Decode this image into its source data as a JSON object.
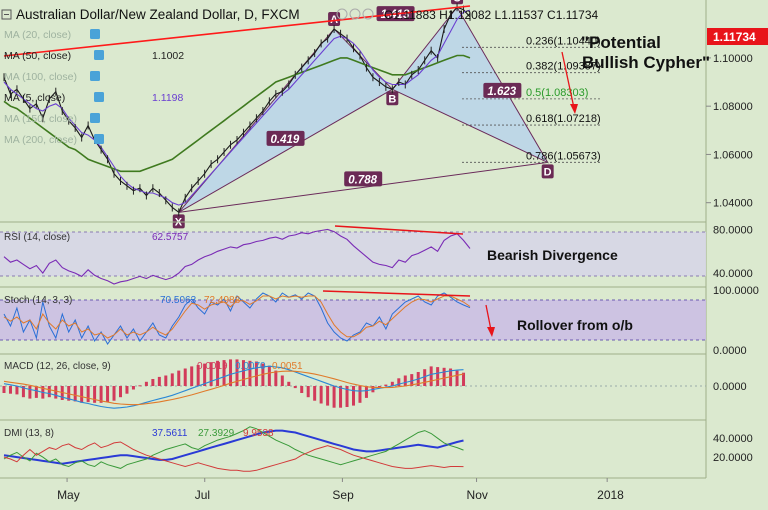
{
  "header": {
    "symbol": "Australian Dollar/New Zealand Dollar, D, FXCM",
    "ohlc": "O1.11883  H1.12082  L1.11537  C1.11734",
    "price_badge": "1.11734"
  },
  "indicators_overlay": [
    {
      "label": "MA (20, close)",
      "value": ""
    },
    {
      "label": "MA (50, close)",
      "value": "1.1002"
    },
    {
      "label": "MA (100, close)",
      "value": ""
    },
    {
      "label": "MA (5, close)",
      "value": "1.1198"
    },
    {
      "label": "MA (150, close)",
      "value": ""
    },
    {
      "label": "MA (200, close)",
      "value": ""
    }
  ],
  "annotations": {
    "title_line1": "\"Potential",
    "title_line2": "Bullish Cypher\"",
    "rsi_note": "Bearish Divergence",
    "stoch_note": "Rollover from o/b"
  },
  "colors": {
    "background": "#dbe9cf",
    "price_line": "#1a1a1a",
    "ma50": "#3f7a1f",
    "ma5": "#6a3fd1",
    "pattern_fill": "#b9d4ea",
    "pattern_stroke": "#6a2a5a",
    "trendline": "#ff1a1a",
    "label_bg": "#6b2a55",
    "rsi_line": "#7a2bb5",
    "stoch_k": "#2a6fd6",
    "stoch_d": "#e07a2a",
    "macd_line": "#2a88d6",
    "signal_line": "#e07a2a",
    "hist": "#d23a5a",
    "dmi_plus": "#3a9a3a",
    "dmi_minus": "#d23a3a",
    "adx": "#2a3ad6",
    "price_badge_bg": "#e8141a"
  },
  "chart_data": [
    {
      "type": "line",
      "title": "Australian Dollar/New Zealand Dollar, D, FXCM",
      "ylim": [
        1.032,
        1.124
      ],
      "yticks": [
        "1.04000",
        "1.06000",
        "1.08000",
        "1.10000"
      ],
      "xticks": [
        "May",
        "Jul",
        "Sep",
        "Nov",
        "2018"
      ],
      "series": [
        {
          "name": "Price",
          "values": [
            1.092,
            1.085,
            1.087,
            1.083,
            1.079,
            1.081,
            1.075,
            1.083,
            1.086,
            1.078,
            1.074,
            1.071,
            1.067,
            1.072,
            1.066,
            1.062,
            1.058,
            1.052,
            1.049,
            1.047,
            1.045,
            1.046,
            1.043,
            1.046,
            1.044,
            1.041,
            1.038,
            1.036,
            1.042,
            1.046,
            1.049,
            1.052,
            1.056,
            1.058,
            1.061,
            1.064,
            1.066,
            1.069,
            1.072,
            1.075,
            1.078,
            1.082,
            1.085,
            1.086,
            1.089,
            1.093,
            1.096,
            1.099,
            1.102,
            1.106,
            1.108,
            1.112,
            1.11,
            1.108,
            1.104,
            1.101,
            1.096,
            1.092,
            1.09,
            1.088,
            1.087,
            1.09,
            1.089,
            1.093,
            1.095,
            1.099,
            1.103,
            1.1,
            1.112,
            1.118,
            1.121,
            1.12,
            1.117
          ]
        },
        {
          "name": "MA (50, close)",
          "values": [
            1.082,
            1.08,
            1.079,
            1.077,
            1.075,
            1.073,
            1.071,
            1.069,
            1.067,
            1.065,
            1.063,
            1.062,
            1.06,
            1.058,
            1.057,
            1.056,
            1.055,
            1.054,
            1.053,
            1.053,
            1.053,
            1.053,
            1.054,
            1.055,
            1.056,
            1.057,
            1.058,
            1.06,
            1.062,
            1.064,
            1.066,
            1.068,
            1.07,
            1.072,
            1.074,
            1.076,
            1.078,
            1.08,
            1.082,
            1.084,
            1.086,
            1.088,
            1.09,
            1.091,
            1.092,
            1.093,
            1.094,
            1.095,
            1.096,
            1.097,
            1.098,
            1.099,
            1.1,
            1.1,
            1.099,
            1.098,
            1.097,
            1.096,
            1.095,
            1.094,
            1.093,
            1.093,
            1.093,
            1.094,
            1.095,
            1.096,
            1.097,
            1.098,
            1.099,
            1.1,
            1.101,
            1.101,
            1.1
          ]
        },
        {
          "name": "MA (5, close)",
          "values": [
            1.09,
            1.087,
            1.085,
            1.083,
            1.081,
            1.079,
            1.078,
            1.08,
            1.081,
            1.079,
            1.075,
            1.072,
            1.069,
            1.068,
            1.066,
            1.063,
            1.059,
            1.055,
            1.051,
            1.048,
            1.046,
            1.045,
            1.044,
            1.044,
            1.043,
            1.042,
            1.04,
            1.039,
            1.04,
            1.043,
            1.046,
            1.049,
            1.052,
            1.055,
            1.058,
            1.061,
            1.064,
            1.067,
            1.07,
            1.073,
            1.076,
            1.079,
            1.082,
            1.085,
            1.087,
            1.09,
            1.093,
            1.096,
            1.099,
            1.102,
            1.105,
            1.108,
            1.109,
            1.108,
            1.106,
            1.103,
            1.099,
            1.095,
            1.092,
            1.09,
            1.089,
            1.089,
            1.089,
            1.091,
            1.093,
            1.096,
            1.099,
            1.101,
            1.106,
            1.111,
            1.116,
            1.119,
            1.1198
          ]
        }
      ],
      "pattern_points": [
        {
          "label": "X",
          "index": 27,
          "value": 1.036
        },
        {
          "label": "A",
          "index": 51,
          "value": 1.112
        },
        {
          "label": "B",
          "index": 60,
          "value": 1.087
        },
        {
          "label": "C",
          "index": 70,
          "value": 1.121
        },
        {
          "label": "D",
          "index": 84,
          "value": 1.0567
        }
      ],
      "ratios": [
        "1.413",
        "0.419",
        "1.623",
        "0.788"
      ],
      "fib_levels": [
        {
          "label": "0.236(1.10440)",
          "value": 1.1044
        },
        {
          "label": "0.382(1.09387)",
          "value": 1.09387
        },
        {
          "label": "0.5(1.08303)",
          "value": 1.08303
        },
        {
          "label": "0.618(1.07218)",
          "value": 1.07218
        },
        {
          "label": "0.786(1.05673)",
          "value": 1.05673
        }
      ]
    },
    {
      "type": "line",
      "title": "RSI (14, close)",
      "value_label": "62.5757",
      "ylim": [
        30,
        85
      ],
      "yticks": [
        "40.0000",
        "80.0000"
      ],
      "series": [
        {
          "name": "RSI (14, close)",
          "values": [
            55,
            50,
            52,
            48,
            44,
            47,
            40,
            49,
            52,
            45,
            42,
            40,
            37,
            43,
            38,
            35,
            33,
            30,
            32,
            33,
            35,
            37,
            35,
            38,
            36,
            34,
            36,
            40,
            46,
            48,
            52,
            55,
            57,
            60,
            62,
            64,
            63,
            66,
            67,
            69,
            70,
            72,
            73,
            71,
            74,
            75,
            77,
            76,
            78,
            79,
            80,
            78,
            74,
            71,
            65,
            60,
            55,
            50,
            48,
            47,
            45,
            52,
            50,
            56,
            58,
            61,
            64,
            60,
            70,
            74,
            76,
            70,
            62.5757
          ]
        }
      ]
    },
    {
      "type": "line",
      "title": "Stoch (14, 3, 3)",
      "value_labels": [
        "70.5063",
        "72.4988"
      ],
      "ylim": [
        0,
        100
      ],
      "yticks": [
        "0.0000",
        "100.0000"
      ],
      "series": [
        {
          "name": "%K",
          "values": [
            60,
            40,
            70,
            30,
            50,
            20,
            80,
            40,
            20,
            60,
            30,
            50,
            20,
            40,
            15,
            30,
            10,
            25,
            40,
            20,
            35,
            15,
            30,
            45,
            25,
            20,
            40,
            55,
            75,
            85,
            70,
            60,
            80,
            75,
            85,
            65,
            90,
            80,
            70,
            85,
            95,
            90,
            80,
            95,
            88,
            92,
            85,
            95,
            90,
            70,
            45,
            30,
            20,
            15,
            25,
            30,
            45,
            40,
            55,
            35,
            60,
            70,
            80,
            85,
            90,
            80,
            75,
            90,
            95,
            88,
            80,
            75,
            70.5063
          ]
        },
        {
          "name": "%D",
          "values": [
            55,
            48,
            55,
            45,
            50,
            35,
            60,
            45,
            35,
            50,
            40,
            45,
            30,
            35,
            25,
            28,
            20,
            25,
            35,
            25,
            30,
            25,
            30,
            38,
            30,
            25,
            35,
            50,
            65,
            78,
            75,
            68,
            75,
            78,
            80,
            72,
            82,
            82,
            76,
            82,
            90,
            90,
            85,
            90,
            88,
            90,
            88,
            90,
            90,
            80,
            60,
            42,
            30,
            22,
            22,
            28,
            38,
            40,
            48,
            42,
            52,
            62,
            72,
            80,
            85,
            84,
            80,
            85,
            90,
            90,
            85,
            80,
            72.4988
          ]
        }
      ]
    },
    {
      "type": "line",
      "title": "MACD (12, 26, close, 9)",
      "value_labels": [
        "0.0019",
        "0.0070",
        "0.0051"
      ],
      "ylim": [
        -0.012,
        0.012
      ],
      "yticks": [
        "0.0000"
      ],
      "series": [
        {
          "name": "MACD",
          "values": [
            0.001,
            0.0005,
            0.0,
            -0.0008,
            -0.0015,
            -0.002,
            -0.0028,
            -0.0032,
            -0.004,
            -0.0048,
            -0.0055,
            -0.0062,
            -0.007,
            -0.0075,
            -0.0082,
            -0.0088,
            -0.0092,
            -0.0095,
            -0.0093,
            -0.009,
            -0.0085,
            -0.0078,
            -0.007,
            -0.0062,
            -0.0055,
            -0.0048,
            -0.004,
            -0.003,
            -0.002,
            -0.001,
            0.0,
            0.001,
            0.002,
            0.003,
            0.004,
            0.005,
            0.0058,
            0.0065,
            0.0072,
            0.0078,
            0.0082,
            0.0085,
            0.0082,
            0.0078,
            0.007,
            0.006,
            0.005,
            0.004,
            0.003,
            0.002,
            0.001,
            0.0,
            -0.0008,
            -0.0015,
            -0.002,
            -0.0022,
            -0.002,
            -0.0015,
            -0.001,
            -0.0005,
            0.0,
            0.0008,
            0.0015,
            0.0022,
            0.003,
            0.004,
            0.005,
            0.0055,
            0.006,
            0.0065,
            0.0068,
            0.007
          ]
        },
        {
          "name": "Signal",
          "values": [
            0.002,
            0.0016,
            0.0012,
            0.0008,
            0.0003,
            -0.0003,
            -0.001,
            -0.0016,
            -0.0022,
            -0.0028,
            -0.0034,
            -0.004,
            -0.0046,
            -0.0052,
            -0.0058,
            -0.0064,
            -0.0069,
            -0.0074,
            -0.0077,
            -0.0079,
            -0.008,
            -0.0079,
            -0.0076,
            -0.0072,
            -0.0068,
            -0.0063,
            -0.0058,
            -0.0052,
            -0.0045,
            -0.0038,
            -0.003,
            -0.0022,
            -0.0014,
            -0.0006,
            0.0003,
            0.0012,
            0.002,
            0.0028,
            0.0036,
            0.0043,
            0.005,
            0.0056,
            0.006,
            0.0063,
            0.0064,
            0.0063,
            0.006,
            0.0056,
            0.0051,
            0.0045,
            0.0038,
            0.0031,
            0.0023,
            0.0015,
            0.0008,
            0.0002,
            -0.0003,
            -0.0006,
            -0.0007,
            -0.0007,
            -0.0006,
            -0.0003,
            0.0,
            0.0005,
            0.001,
            0.0016,
            0.0022,
            0.0028,
            0.0034,
            0.004,
            0.0046,
            0.0051
          ]
        }
      ]
    },
    {
      "type": "line",
      "title": "DMI (13, 8)",
      "value_labels": [
        "37.5611",
        "27.3929",
        "9.9538"
      ],
      "ylim": [
        0,
        55
      ],
      "yticks": [
        "20.0000",
        "40.0000"
      ],
      "series": [
        {
          "name": "ADX",
          "values": [
            22,
            21,
            20,
            19,
            18,
            17,
            16,
            15,
            14,
            13,
            14,
            15,
            16,
            17,
            18,
            19,
            20,
            21,
            22,
            22,
            21,
            20,
            19,
            18,
            17,
            17,
            18,
            20,
            22,
            24,
            26,
            28,
            30,
            32,
            34,
            36,
            38,
            40,
            42,
            44,
            46,
            47,
            48,
            48,
            47,
            46,
            44,
            42,
            40,
            38,
            36,
            34,
            32,
            30,
            28,
            27,
            26,
            26,
            27,
            28,
            29,
            30,
            31,
            32,
            33,
            32,
            31,
            30,
            32,
            34,
            36,
            37.5611
          ]
        },
        {
          "name": "+DI",
          "values": [
            18,
            22,
            25,
            20,
            16,
            24,
            20,
            15,
            18,
            12,
            10,
            14,
            16,
            12,
            10,
            15,
            12,
            10,
            8,
            12,
            14,
            16,
            18,
            22,
            25,
            28,
            30,
            32,
            34,
            30,
            28,
            32,
            35,
            38,
            40,
            42,
            45,
            48,
            52,
            50,
            46,
            42,
            38,
            35,
            32,
            28,
            25,
            22,
            20,
            18,
            16,
            14,
            12,
            14,
            16,
            18,
            20,
            22,
            24,
            26,
            30,
            34,
            38,
            42,
            46,
            48,
            45,
            40,
            35,
            32,
            30,
            27.3929
          ]
        },
        {
          "name": "-DI",
          "values": [
            20,
            18,
            15,
            22,
            28,
            22,
            26,
            30,
            28,
            32,
            34,
            30,
            28,
            32,
            35,
            30,
            32,
            35,
            36,
            32,
            28,
            25,
            22,
            20,
            18,
            16,
            14,
            12,
            10,
            12,
            14,
            12,
            10,
            8,
            7,
            6,
            6,
            5,
            5,
            6,
            8,
            10,
            12,
            14,
            16,
            18,
            22,
            25,
            28,
            30,
            32,
            30,
            28,
            25,
            22,
            20,
            18,
            16,
            14,
            12,
            10,
            9,
            8,
            8,
            9,
            10,
            11,
            10,
            9,
            10,
            10,
            9.9538
          ]
        }
      ]
    }
  ]
}
